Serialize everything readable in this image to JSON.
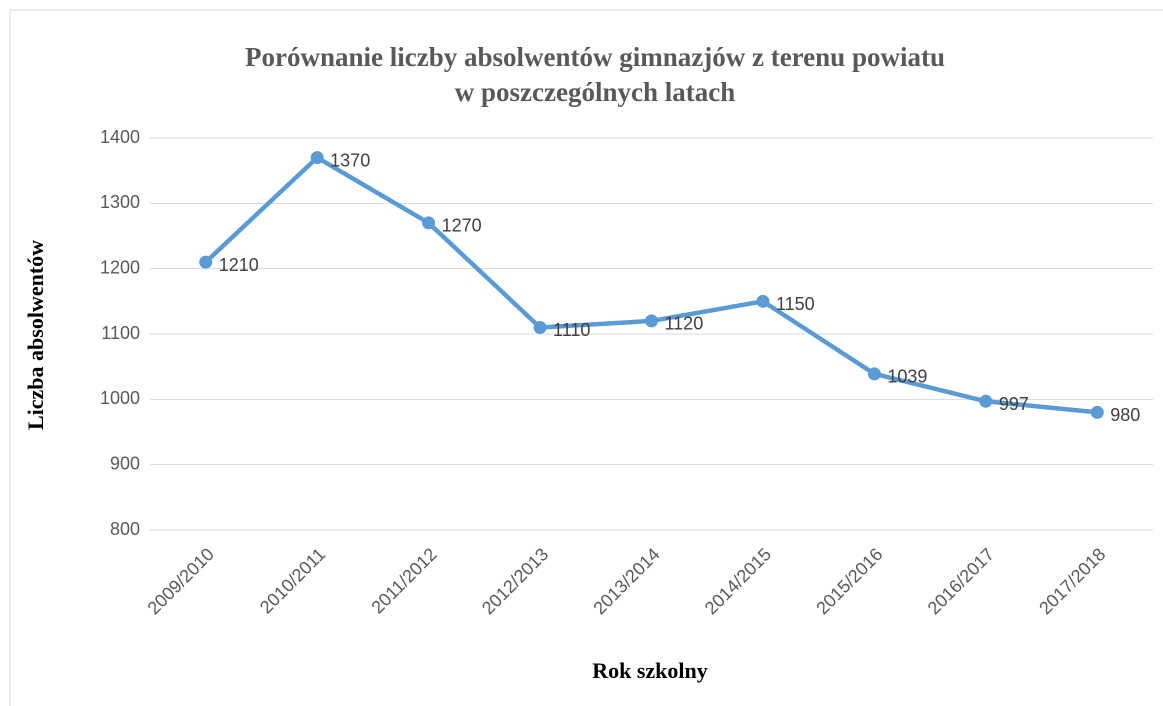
{
  "chart_data": {
    "type": "line",
    "title": [
      "Porównanie liczby absolwentów gimnazjów z terenu powiatu",
      "w poszczególnych latach"
    ],
    "x_label": "Rok szkolny",
    "y_label": "Liczba absolwentów",
    "categories": [
      "2009/2010",
      "2010/2011",
      "2011/2012",
      "2012/2013",
      "2013/2014",
      "2014/2015",
      "2015/2016",
      "2016/2017",
      "2017/2018"
    ],
    "series": [
      {
        "name": "Liczba absolwentów",
        "color": "#5b9bd5",
        "values": [
          1210,
          1370,
          1270,
          1110,
          1120,
          1150,
          1039,
          997,
          980
        ]
      }
    ],
    "ylim": [
      800,
      1400
    ],
    "yticks": [
      800,
      900,
      1000,
      1100,
      1200,
      1300,
      1400
    ],
    "grid": true,
    "data_labels": true
  }
}
